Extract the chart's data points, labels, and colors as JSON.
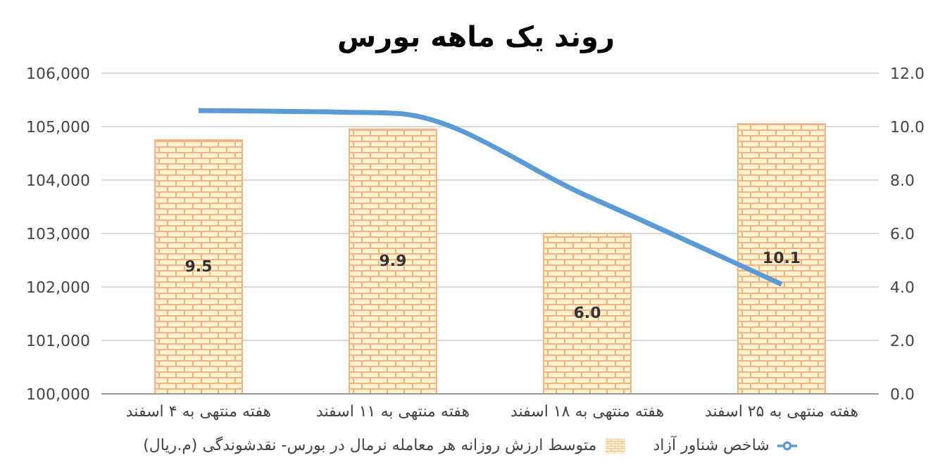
{
  "chart_data": {
    "type": "bar",
    "title": "روند یک ماهه بورس",
    "categories": [
      "هفته منتهی به ۴ اسفند",
      "هفته منتهی به ۱۱ اسفند",
      "هفته منتهی به ۱۸ اسفند",
      "هفته منتهی به ۲۵ اسفند"
    ],
    "series": [
      {
        "axis": "y2",
        "name": "متوسط ارزش روزانه هر معامله نرمال در بورس- نقدشوندگی (م.ریال)",
        "color": "#f4b183",
        "values": [
          9.5,
          9.9,
          6.0,
          10.1
        ],
        "value_labels": [
          "9.5",
          "9.9",
          "6.0",
          "10.1"
        ]
      },
      {
        "type": "line",
        "axis": "y",
        "name": "شاخص شناور آزاد",
        "color": "#5b9bd5",
        "values": [
          105300,
          105250,
          103700,
          102050
        ]
      }
    ],
    "ylim": [
      100000,
      106000
    ],
    "yticks": [
      {
        "value": 100000,
        "label": "100,000"
      },
      {
        "value": 101000,
        "label": "101,000"
      },
      {
        "value": 102000,
        "label": "102,000"
      },
      {
        "value": 103000,
        "label": "103,000"
      },
      {
        "value": 104000,
        "label": "104,000"
      },
      {
        "value": 105000,
        "label": "105,000"
      },
      {
        "value": 106000,
        "label": "106,000"
      }
    ],
    "y2lim": [
      0,
      12
    ],
    "y2ticks": [
      {
        "value": 0,
        "label": "0.0"
      },
      {
        "value": 2,
        "label": "2.0"
      },
      {
        "value": 4,
        "label": "4.0"
      },
      {
        "value": 6,
        "label": "6.0"
      },
      {
        "value": 8,
        "label": "8.0"
      },
      {
        "value": 10,
        "label": "10.0"
      },
      {
        "value": 12,
        "label": "12.0"
      }
    ],
    "grid": "y",
    "legend": "bottom",
    "marker": "none",
    "line_style": "solid"
  }
}
